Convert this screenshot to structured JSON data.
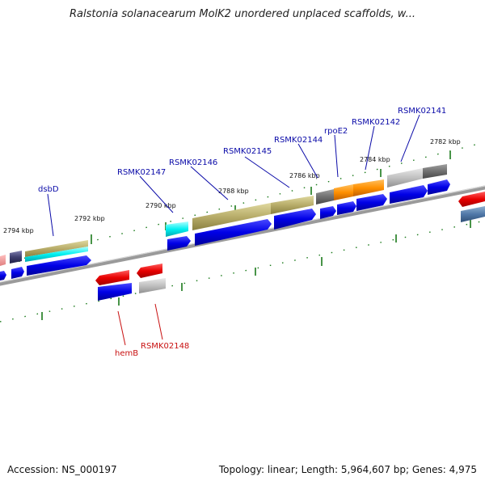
{
  "title": "Ralstonia solanacearum MolK2 unordered unplaced scaffolds, w...",
  "footer": {
    "accession": "Accession: NS_000197",
    "topology": "Topology: linear; Length: 5,964,607 bp; Genes: 4,975"
  },
  "scale_labels": [
    "2782 kbp",
    "2784 kbp",
    "2786 kbp",
    "2788 kbp",
    "2790 kbp",
    "2792 kbp",
    "2794 kbp"
  ],
  "gene_labels_top": [
    "RSMK02141",
    "RSMK02142",
    "rpoE2",
    "RSMK02144",
    "RSMK02145",
    "RSMK02146",
    "RSMK02147",
    "dsbD"
  ],
  "gene_labels_bottom": [
    "hemB",
    "RSMK02148"
  ],
  "colors": {
    "forward_label": "#0a0aa8",
    "reverse_label": "#c81010",
    "tick": "#1a7a1a",
    "backbone": "#808080"
  }
}
